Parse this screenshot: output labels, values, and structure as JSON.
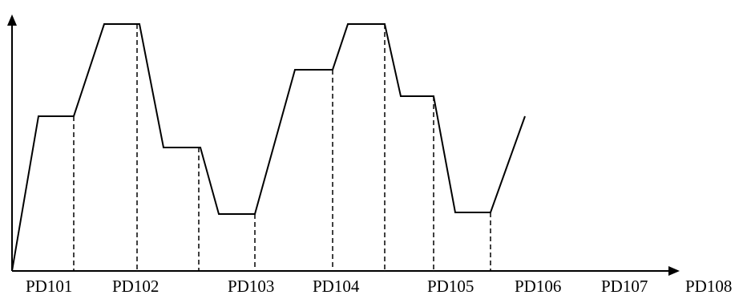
{
  "diagram": {
    "stroke_color": "#000000",
    "background_color": "#ffffff",
    "labels": [
      "PD101",
      "PD102",
      "PD103",
      "PD104",
      "PD105",
      "PD106",
      "PD107",
      "PD108"
    ]
  }
}
